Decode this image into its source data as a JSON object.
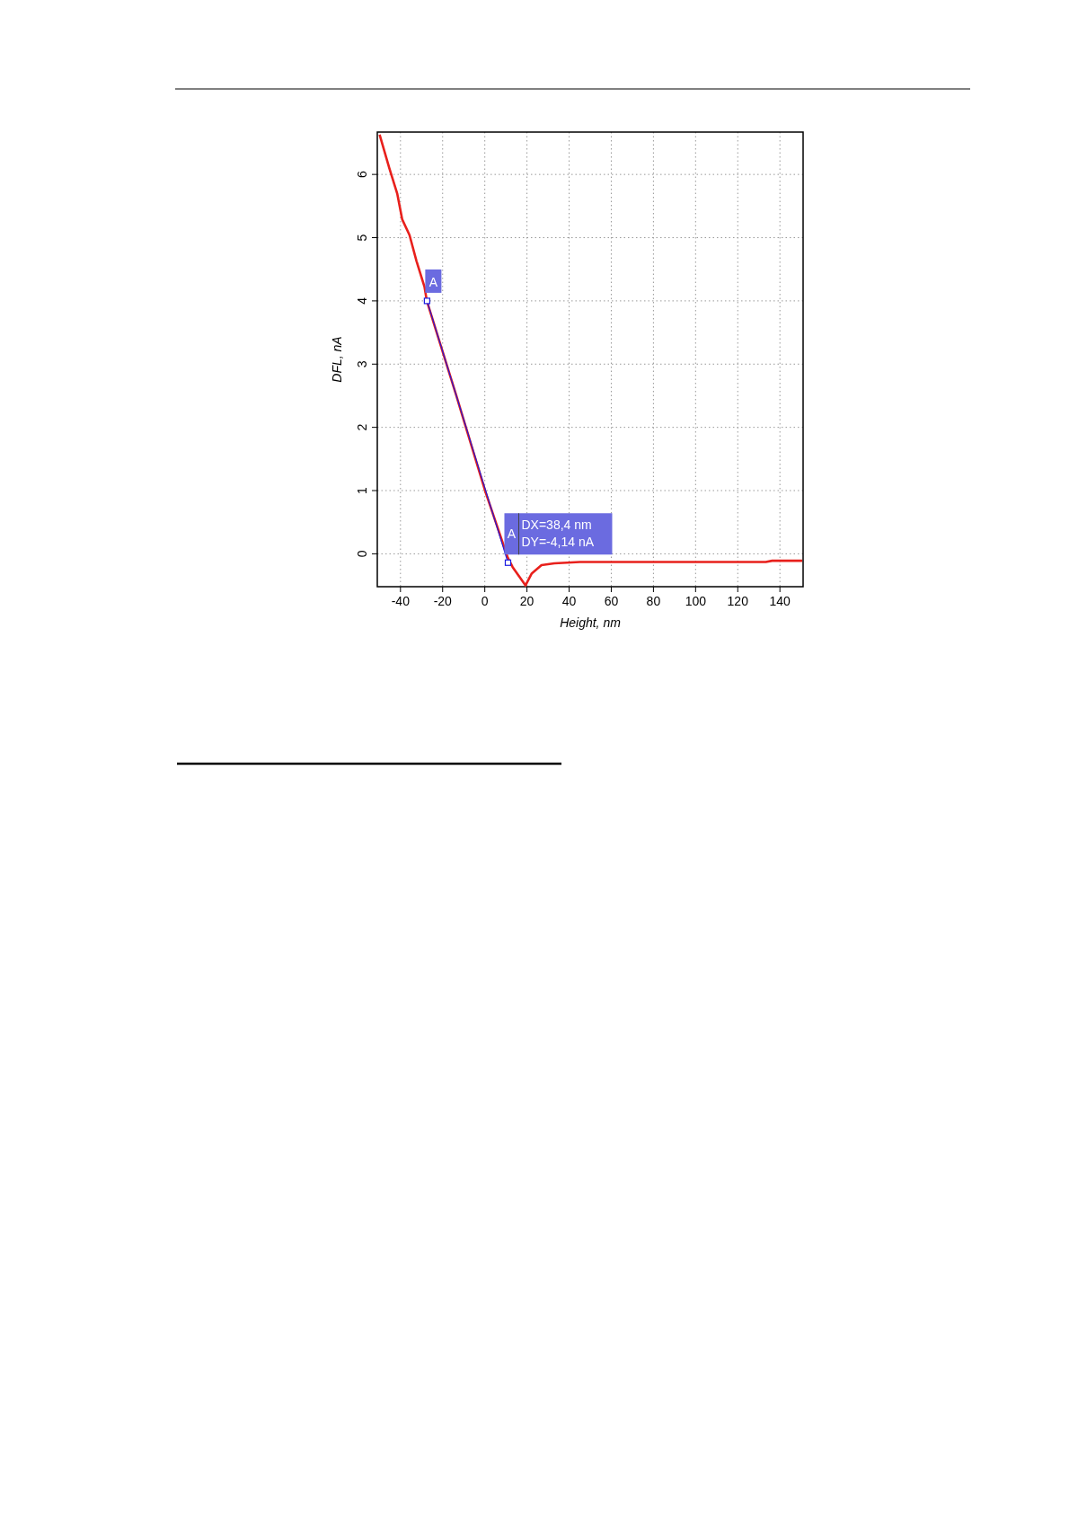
{
  "chart_data": {
    "type": "line",
    "xlabel": "Height, nm",
    "ylabel": "DFL, nA",
    "xlim": [
      -51,
      151
    ],
    "ylim": [
      -0.52,
      6.67
    ],
    "xticks": [
      -40,
      -20,
      0,
      20,
      40,
      60,
      80,
      100,
      120,
      140
    ],
    "yticks": [
      0,
      1,
      2,
      3,
      4,
      5,
      6
    ],
    "grid": true,
    "series": [
      {
        "color": "#e8201c",
        "marker": "none",
        "x": [
          -49.9,
          -45.3,
          -41.5,
          -39.2,
          -35.7,
          -32.4,
          -28.6,
          -27.5,
          -13.5,
          0.3,
          10.9,
          13.2,
          19.3,
          22.3,
          26.9,
          33,
          45.1,
          133.3,
          136.3,
          150.6
        ],
        "values": [
          6.63,
          6.1,
          5.69,
          5.29,
          5.04,
          4.63,
          4.22,
          4.0,
          2.5,
          0.98,
          -0.06,
          -0.21,
          -0.5,
          -0.31,
          -0.18,
          -0.15,
          -0.13,
          -0.13,
          -0.11,
          -0.11
        ]
      },
      {
        "color": "#1a1ae0",
        "marker": "square",
        "x": [
          -27.4,
          11.0
        ],
        "values": [
          4.0,
          -0.14
        ]
      }
    ],
    "annotations": [
      {
        "text": "A",
        "x": -27.4,
        "y": 4.0
      },
      {
        "text": "A",
        "x": 11.0,
        "y": -0.14
      },
      "DX=38,4 nm",
      "DY=-4,14 nA"
    ]
  }
}
